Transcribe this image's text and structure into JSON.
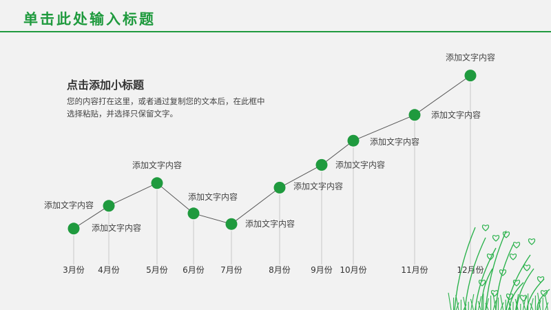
{
  "slide": {
    "title": "单击此处输入标题",
    "subtitle": "点击添加小标题",
    "body": "您的内容打在这里，或者通过复制您的文本后，在此框中选择粘贴，并选择只保留文字。"
  },
  "colors": {
    "accent": "#1f9a3e",
    "line": "#555555",
    "grass": "#2bb24c"
  },
  "chart_data": {
    "type": "line",
    "categories": [
      "3月份",
      "4月份",
      "5月份",
      "6月份",
      "7月份",
      "8月份",
      "9月份",
      "10月份",
      "11月份",
      "12月份"
    ],
    "x": [
      3,
      4,
      5,
      6,
      7,
      8,
      9,
      10,
      11,
      12
    ],
    "values": [
      2.1,
      3.6,
      5.1,
      3.1,
      2.4,
      4.8,
      6.3,
      7.9,
      9.6,
      12.2
    ],
    "point_labels": [
      "添加文字内容",
      "添加文字内容",
      "添加文字内容",
      "添加文字内容",
      "添加文字内容",
      "添加文字内容",
      "添加文字内容",
      "添加文字内容",
      "添加文字内容",
      "添加文字内容"
    ],
    "ylim": [
      0,
      14
    ]
  }
}
